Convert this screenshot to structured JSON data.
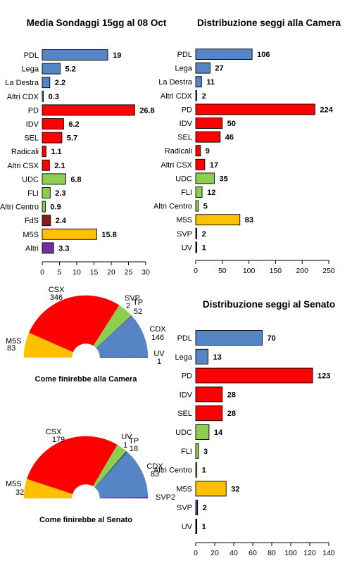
{
  "colors": {
    "cdx": "#5585c5",
    "csx": "#ff0000",
    "centro": "#8ccf4f",
    "fds": "#8b1a1a",
    "m5s": "#ffc000",
    "altri": "#7030a0",
    "uv": "#000000"
  },
  "chart_data": [
    {
      "type": "bar",
      "orientation": "horizontal",
      "title": "Media Sondaggi 15gg al 08 Oct",
      "categories": [
        "PDL",
        "Lega",
        "La Destra",
        "Altri CDX",
        "PD",
        "IDV",
        "SEL",
        "Radicali",
        "Altri CSX",
        "UDC",
        "FLI",
        "Altri Centro",
        "FdS",
        "M5S",
        "Altri"
      ],
      "values": [
        19,
        5.2,
        2.2,
        0.3,
        26.8,
        6.2,
        5.7,
        1.1,
        2.1,
        6.8,
        2.3,
        0.9,
        2.4,
        15.8,
        3.3
      ],
      "labels": [
        "19",
        "5.2",
        "2.2",
        "0.3",
        "26.8",
        "6.2",
        "5.7",
        "1.1",
        "2.1",
        "6.8",
        "2.3",
        "0.9",
        "2.4",
        "15.8",
        "3.3"
      ],
      "groups": [
        "cdx",
        "cdx",
        "cdx",
        "cdx",
        "csx",
        "csx",
        "csx",
        "csx",
        "csx",
        "centro",
        "centro",
        "centro",
        "fds",
        "m5s",
        "altri"
      ],
      "xlim": [
        0,
        30
      ],
      "ticks": [
        "0",
        "5",
        "10",
        "15",
        "20",
        "25",
        "30"
      ]
    },
    {
      "type": "bar",
      "orientation": "horizontal",
      "title": "Distribuzione seggi alla Camera",
      "categories": [
        "PDL",
        "Lega",
        "La Destra",
        "Altri CDX",
        "PD",
        "IDV",
        "SEL",
        "Radicali",
        "Altri CSX",
        "UDC",
        "FLI",
        "Altri Centro",
        "M5S",
        "SVP",
        "UV"
      ],
      "values": [
        106,
        27,
        11,
        2,
        224,
        50,
        46,
        9,
        17,
        35,
        12,
        5,
        83,
        2,
        1
      ],
      "labels": [
        "106",
        "27",
        "11",
        "2",
        "224",
        "50",
        "46",
        "9",
        "17",
        "35",
        "12",
        "5",
        "83",
        "2",
        "1"
      ],
      "groups": [
        "cdx",
        "cdx",
        "cdx",
        "cdx",
        "csx",
        "csx",
        "csx",
        "csx",
        "csx",
        "centro",
        "centro",
        "centro",
        "m5s",
        "altri",
        "uv"
      ],
      "xlim": [
        0,
        250
      ],
      "ticks": [
        "0",
        "50",
        "100",
        "150",
        "200",
        "250"
      ]
    },
    {
      "type": "bar",
      "orientation": "horizontal",
      "title": "Distribuzione seggi al Senato",
      "categories": [
        "PDL",
        "Lega",
        "PD",
        "IDV",
        "SEL",
        "UDC",
        "FLI",
        "Altri Centro",
        "M5S",
        "SVP",
        "UV"
      ],
      "values": [
        70,
        13,
        123,
        28,
        28,
        14,
        3,
        1,
        32,
        2,
        1
      ],
      "labels": [
        "70",
        "13",
        "123",
        "28",
        "28",
        "14",
        "3",
        "1",
        "32",
        "2",
        "1"
      ],
      "groups": [
        "cdx",
        "cdx",
        "csx",
        "csx",
        "csx",
        "centro",
        "centro",
        "centro",
        "m5s",
        "altri",
        "uv"
      ],
      "xlim": [
        0,
        140
      ],
      "ticks": [
        "0",
        "20",
        "40",
        "60",
        "80",
        "100",
        "120",
        "140"
      ]
    },
    {
      "type": "pie",
      "subtype": "hemicycle",
      "title": "Come finirebbe alla Camera",
      "slices": [
        {
          "key": "m5s",
          "label": "M5S",
          "value": 83,
          "group": "m5s"
        },
        {
          "key": "csx",
          "label": "CSX",
          "value": 346,
          "group": "csx"
        },
        {
          "key": "tp",
          "label": "TP",
          "value": 52,
          "group": "centro"
        },
        {
          "key": "svp",
          "label": "SVP",
          "value": 2,
          "group": "altri"
        },
        {
          "key": "cdx",
          "label": "CDX",
          "value": 146,
          "group": "cdx"
        },
        {
          "key": "uv",
          "label": "UV",
          "value": 1,
          "group": "uv"
        }
      ]
    },
    {
      "type": "pie",
      "subtype": "hemicycle",
      "title": "Come finirebbe al Senato",
      "slices": [
        {
          "key": "m5s",
          "label": "M5S",
          "value": 32,
          "group": "m5s"
        },
        {
          "key": "csx",
          "label": "CSX",
          "value": 179,
          "group": "csx"
        },
        {
          "key": "tp",
          "label": "TP",
          "value": 18,
          "group": "centro"
        },
        {
          "key": "uv",
          "label": "UV",
          "value": 1,
          "group": "uv"
        },
        {
          "key": "cdx",
          "label": "CDX",
          "value": 83,
          "group": "cdx"
        },
        {
          "key": "svp",
          "label": "SVP",
          "value": 2,
          "group": "altri"
        }
      ]
    }
  ]
}
